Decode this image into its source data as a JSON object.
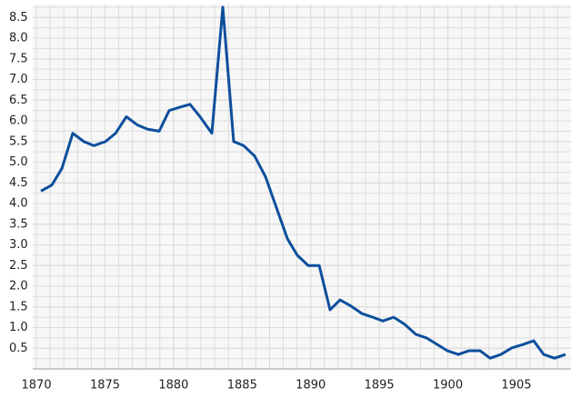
{
  "chart_data": {
    "type": "line",
    "x": [
      1870.33,
      1871.13,
      1871.86,
      1872.65,
      1873.45,
      1874.18,
      1875.04,
      1875.77,
      1876.56,
      1877.36,
      1878.09,
      1878.95,
      1879.68,
      1880.47,
      1881.2,
      1881.93,
      1882.79,
      1883.59,
      1884.38,
      1885.11,
      1885.91,
      1886.7,
      1887.5,
      1888.3,
      1889.02,
      1889.82,
      1890.62,
      1891.41,
      1892.14,
      1892.94,
      1893.73,
      1894.53,
      1895.26,
      1896.05,
      1896.85,
      1897.65,
      1898.44,
      1899.23,
      1899.96,
      1900.76,
      1901.55,
      1902.35,
      1903.08,
      1903.87,
      1904.67,
      1905.46,
      1906.26,
      1906.99,
      1907.78,
      1908.58
    ],
    "series": [
      {
        "color": "#0d4f9c",
        "values": [
          4.3,
          4.45,
          4.85,
          5.7,
          5.5,
          5.4,
          5.5,
          5.7,
          6.1,
          5.9,
          5.8,
          5.75,
          6.25,
          6.33,
          6.4,
          6.1,
          5.7,
          8.75,
          5.5,
          5.4,
          5.15,
          4.65,
          3.9,
          3.15,
          2.75,
          2.5,
          2.5,
          1.43,
          1.67,
          1.52,
          1.34,
          1.25,
          1.16,
          1.25,
          1.08,
          0.84,
          0.75,
          0.59,
          0.44,
          0.35,
          0.44,
          0.44,
          0.26,
          0.35,
          0.51,
          0.59,
          0.68,
          0.35,
          0.26,
          0.35
        ]
      }
    ],
    "xlim": [
      1869.73,
      1908.98
    ],
    "xticks": [
      1870,
      1875,
      1880,
      1885,
      1890,
      1895,
      1900,
      1905
    ],
    "ylim": [
      0,
      8.8
    ],
    "yticks": [
      0.5,
      {
        "value": 1,
        "label": "1.0"
      },
      1.5,
      {
        "value": 2,
        "label": "2.0"
      },
      2.5,
      {
        "value": 3,
        "label": "3.0"
      },
      3.5,
      {
        "value": 4,
        "label": "4.0"
      },
      4.5,
      {
        "value": 5,
        "label": "5.0"
      },
      5.5,
      {
        "value": 6,
        "label": "6.0"
      },
      6.5,
      {
        "value": 7,
        "label": "7.0"
      },
      7.5,
      {
        "value": 8,
        "label": "8.0"
      },
      8.5
    ],
    "grid": true
  }
}
